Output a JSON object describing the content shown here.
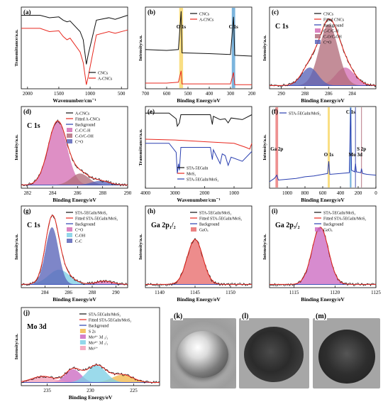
{
  "colors": {
    "black": "#111111",
    "red": "#e8281f",
    "blue": "#2a3fb0",
    "pink": "#d56fb5",
    "mauve": "#b26d7b",
    "navy": "#5a64b8",
    "yellow_band": "#f7d35a",
    "blue_band": "#4f9bd1",
    "salmon": "#e86c6c",
    "magenta": "#cc6ac2",
    "cyan": "#7fd0e6",
    "orange": "#f2b84b",
    "pink_light": "#f3a0b8"
  },
  "chart_data": [
    {
      "id": "a",
      "panel_label": "(a)",
      "type": "line",
      "xlabel": "Wavenumber/cm⁻¹",
      "ylabel": "Transmittance/a.u.",
      "xlim": [
        2100,
        400
      ],
      "xticks": [
        2000,
        1500,
        1000,
        500
      ],
      "legend": "bottom-right",
      "series": [
        {
          "name": "CNCs",
          "color": "black",
          "values": [
            [
              2100,
              0.9
            ],
            [
              1800,
              0.9
            ],
            [
              1650,
              0.87
            ],
            [
              1500,
              0.88
            ],
            [
              1430,
              0.84
            ],
            [
              1370,
              0.82
            ],
            [
              1320,
              0.83
            ],
            [
              1160,
              0.7
            ],
            [
              1110,
              0.6
            ],
            [
              1060,
              0.3
            ],
            [
              1030,
              0.42
            ],
            [
              900,
              0.84
            ],
            [
              700,
              0.87
            ],
            [
              600,
              0.85
            ],
            [
              400,
              0.9
            ]
          ]
        },
        {
          "name": "A-CNCs",
          "color": "red",
          "values": [
            [
              2100,
              0.74
            ],
            [
              1800,
              0.74
            ],
            [
              1650,
              0.7
            ],
            [
              1500,
              0.71
            ],
            [
              1430,
              0.64
            ],
            [
              1370,
              0.6
            ],
            [
              1320,
              0.62
            ],
            [
              1160,
              0.45
            ],
            [
              1110,
              0.32
            ],
            [
              1060,
              0.05
            ],
            [
              1030,
              0.15
            ],
            [
              900,
              0.66
            ],
            [
              700,
              0.7
            ],
            [
              600,
              0.68
            ],
            [
              400,
              0.72
            ]
          ]
        }
      ]
    },
    {
      "id": "b",
      "panel_label": "(b)",
      "type": "line",
      "xlabel": "Binding Energy/eV",
      "ylabel": "Intensity/a.u.",
      "xlim": [
        700,
        200
      ],
      "xticks": [
        700,
        600,
        500,
        400,
        300,
        200
      ],
      "legend": "top-right",
      "annotations": [
        "O 1s",
        "C 1s"
      ],
      "bands": [
        {
          "label": "O 1s",
          "center": 532,
          "width": 18,
          "color": "yellow_band"
        },
        {
          "label": "C 1s",
          "center": 286,
          "width": 16,
          "color": "blue_band"
        }
      ],
      "series": [
        {
          "name": "CNCs",
          "color": "black",
          "values": [
            [
              700,
              0.48
            ],
            [
              600,
              0.47
            ],
            [
              545,
              0.48
            ],
            [
              532,
              0.95
            ],
            [
              528,
              0.44
            ],
            [
              400,
              0.43
            ],
            [
              300,
              0.42
            ],
            [
              286,
              0.88
            ],
            [
              280,
              0.41
            ],
            [
              200,
              0.4
            ]
          ]
        },
        {
          "name": "A-CNCs",
          "color": "red",
          "values": [
            [
              700,
              0.07
            ],
            [
              600,
              0.07
            ],
            [
              545,
              0.08
            ],
            [
              532,
              0.22
            ],
            [
              528,
              0.06
            ],
            [
              400,
              0.06
            ],
            [
              300,
              0.06
            ],
            [
              286,
              0.2
            ],
            [
              280,
              0.05
            ],
            [
              200,
              0.05
            ]
          ]
        }
      ]
    },
    {
      "id": "c",
      "panel_label": "(c)",
      "type": "line",
      "xlabel": "Binding Energy/eV",
      "ylabel": "Intensity/a.u.",
      "xlim": [
        291,
        282
      ],
      "xticks": [
        290,
        288,
        286,
        284
      ],
      "legend": "top-right",
      "annotations": [
        "C 1s"
      ],
      "peaks": [
        {
          "name": "C-C/C-H",
          "center": 284.6,
          "height": 0.22,
          "sigma": 0.8,
          "color": "pink"
        },
        {
          "name": "C-O/C-OH",
          "center": 286.0,
          "height": 0.75,
          "sigma": 0.8,
          "color": "mauve"
        },
        {
          "name": "C=O",
          "center": 287.6,
          "height": 0.22,
          "sigma": 0.7,
          "color": "navy"
        }
      ],
      "series": [
        {
          "name": "CNCs",
          "color": "black",
          "values": []
        },
        {
          "name": "Fitted CNCs",
          "color": "red",
          "values": []
        },
        {
          "name": "Background",
          "color": "blue",
          "values": []
        }
      ]
    },
    {
      "id": "d",
      "panel_label": "(d)",
      "type": "line",
      "xlabel": "Binding Energy/eV",
      "ylabel": "Intensity/a.u.",
      "xlim": [
        281.5,
        290
      ],
      "xticks": [
        282,
        284,
        286,
        288,
        290
      ],
      "legend": "top-right",
      "annotations": [
        "C 1s"
      ],
      "peaks": [
        {
          "name": "C-C/C-H",
          "center": 284.4,
          "height": 0.78,
          "sigma": 0.75,
          "color": "pink"
        },
        {
          "name": "C-O/C-OH",
          "center": 286.2,
          "height": 0.14,
          "sigma": 0.7,
          "color": "mauve"
        },
        {
          "name": "C=O",
          "center": 287.8,
          "height": 0.05,
          "sigma": 0.7,
          "color": "navy"
        }
      ],
      "series": [
        {
          "name": "A-CNCs",
          "color": "black",
          "values": []
        },
        {
          "name": "Fitted A-CNCs",
          "color": "red",
          "values": []
        },
        {
          "name": "Background",
          "color": "blue",
          "values": []
        }
      ]
    },
    {
      "id": "e",
      "panel_label": "(e)",
      "type": "line",
      "xlabel": "Wavenumber/cm⁻¹",
      "ylabel": "Transmittance/a.u.",
      "xlim": [
        4000,
        400
      ],
      "xticks": [
        4000,
        3000,
        2000,
        1000
      ],
      "legend": "bottom-center",
      "series": [
        {
          "name": "STA-5EGaIn",
          "color": "black",
          "values": [
            [
              4000,
              0.92
            ],
            [
              3200,
              0.92
            ],
            [
              2960,
              0.85
            ],
            [
              2920,
              0.76
            ],
            [
              2850,
              0.8
            ],
            [
              2800,
              0.9
            ],
            [
              1800,
              0.9
            ],
            [
              1735,
              0.78
            ],
            [
              1700,
              0.88
            ],
            [
              1470,
              0.84
            ],
            [
              1300,
              0.85
            ],
            [
              1200,
              0.8
            ],
            [
              1100,
              0.86
            ],
            [
              720,
              0.84
            ],
            [
              400,
              0.9
            ]
          ]
        },
        {
          "name": "MoS₂",
          "color": "red",
          "values": [
            [
              4000,
              0.6
            ],
            [
              3000,
              0.59
            ],
            [
              2000,
              0.57
            ],
            [
              1500,
              0.56
            ],
            [
              1000,
              0.55
            ],
            [
              600,
              0.5
            ],
            [
              470,
              0.48
            ],
            [
              400,
              0.55
            ]
          ]
        },
        {
          "name": "STA-5EGaIn/MoS₂",
          "color": "blue",
          "values": [
            [
              4000,
              0.55
            ],
            [
              3200,
              0.55
            ],
            [
              2960,
              0.44
            ],
            [
              2920,
              0.18
            ],
            [
              2880,
              0.3
            ],
            [
              2850,
              0.22
            ],
            [
              2800,
              0.5
            ],
            [
              1800,
              0.5
            ],
            [
              1735,
              0.35
            ],
            [
              1700,
              0.47
            ],
            [
              1470,
              0.3
            ],
            [
              1400,
              0.42
            ],
            [
              1300,
              0.4
            ],
            [
              1200,
              0.28
            ],
            [
              1100,
              0.38
            ],
            [
              720,
              0.33
            ],
            [
              400,
              0.45
            ]
          ]
        }
      ]
    },
    {
      "id": "f",
      "panel_label": "(f)",
      "type": "line",
      "xlabel": "Binding Energy/eV",
      "ylabel": "Intensity/a.u.",
      "xlim": [
        1200,
        0
      ],
      "xticks": [
        1000,
        800,
        600,
        400,
        200,
        0
      ],
      "legend": "top-right",
      "annotations": [
        "C 1s",
        "O 1s",
        "Ga 2p",
        "Mo 3d",
        "S 2p"
      ],
      "bands": [
        {
          "label": "Ga 2p",
          "center": 1118,
          "width": 30,
          "color": "salmon"
        },
        {
          "label": "O 1s",
          "center": 532,
          "width": 24,
          "color": "yellow_band"
        },
        {
          "label": "C 1s",
          "center": 285,
          "width": 18,
          "color": "blue_band"
        },
        {
          "label": "Mo 3d",
          "center": 230,
          "width": 12,
          "color": "navy"
        },
        {
          "label": "S 2p",
          "center": 163,
          "width": 10,
          "color": "mauve"
        }
      ],
      "series": [
        {
          "name": "STA-5EGaIn/MoS₂",
          "color": "blue",
          "values": [
            [
              1200,
              0.08
            ],
            [
              1145,
              0.12
            ],
            [
              1118,
              0.16
            ],
            [
              1100,
              0.1
            ],
            [
              1000,
              0.11
            ],
            [
              900,
              0.12
            ],
            [
              800,
              0.14
            ],
            [
              700,
              0.15
            ],
            [
              600,
              0.17
            ],
            [
              545,
              0.18
            ],
            [
              532,
              0.33
            ],
            [
              520,
              0.17
            ],
            [
              400,
              0.18
            ],
            [
              300,
              0.19
            ],
            [
              285,
              0.98
            ],
            [
              275,
              0.22
            ],
            [
              240,
              0.2
            ],
            [
              230,
              0.3
            ],
            [
              220,
              0.2
            ],
            [
              170,
              0.19
            ],
            [
              163,
              0.24
            ],
            [
              150,
              0.18
            ],
            [
              100,
              0.17
            ],
            [
              0,
              0.16
            ]
          ]
        }
      ]
    },
    {
      "id": "g",
      "panel_label": "(g)",
      "type": "line",
      "xlabel": "Binding Energy/eV",
      "ylabel": "Intensity/a.u.",
      "xlim": [
        282,
        291
      ],
      "xticks": [
        284,
        286,
        288,
        290
      ],
      "legend": "top-right",
      "annotations": [
        "C 1s"
      ],
      "peaks": [
        {
          "name": "C=O",
          "center": 289.0,
          "height": 0.04,
          "sigma": 0.7,
          "color": "pink"
        },
        {
          "name": "C-OH",
          "center": 285.2,
          "height": 0.18,
          "sigma": 0.9,
          "color": "cyan"
        },
        {
          "name": "C-C",
          "center": 284.6,
          "height": 0.7,
          "sigma": 0.55,
          "color": "navy"
        }
      ],
      "series": [
        {
          "name": "STA-5EGaIn/MoS₂",
          "color": "black",
          "values": []
        },
        {
          "name": "Fitted STA-5EGaIn/MoS₂",
          "color": "red",
          "values": []
        },
        {
          "name": "Background",
          "color": "blue",
          "values": []
        }
      ]
    },
    {
      "id": "h",
      "panel_label": "(h)",
      "type": "line",
      "xlabel": "Binding Energy/eV",
      "ylabel": "Intensity/a.u.",
      "xlim": [
        1138,
        1153
      ],
      "xticks": [
        1140,
        1145,
        1150
      ],
      "legend": "top-right",
      "annotations": [
        "Ga 2p₁/₂"
      ],
      "peaks": [
        {
          "name": "GaOₓ",
          "center": 1145.0,
          "height": 0.55,
          "sigma": 1.1,
          "color": "salmon"
        }
      ],
      "series": [
        {
          "name": "STA-5EGaIn/MoS₂",
          "color": "black",
          "values": []
        },
        {
          "name": "Fitted STA-5EGaIn/MoS₂",
          "color": "red",
          "values": []
        },
        {
          "name": "Background",
          "color": "blue",
          "values": []
        }
      ]
    },
    {
      "id": "i",
      "panel_label": "(i)",
      "type": "line",
      "xlabel": "Binding Energy/eV",
      "ylabel": "Intensity/a.u.",
      "xlim": [
        1112,
        1125
      ],
      "xticks": [
        1115,
        1120,
        1125
      ],
      "legend": "top-right",
      "annotations": [
        "Ga 2p₃/₂"
      ],
      "peaks": [
        {
          "name": "GaOₓ",
          "center": 1118.2,
          "height": 0.7,
          "sigma": 1.0,
          "color": "magenta"
        }
      ],
      "series": [
        {
          "name": "STA-5EGaIn/MoS₂",
          "color": "black",
          "values": []
        },
        {
          "name": "Fitted STA-5EGaIn/MoS₂",
          "color": "red",
          "values": []
        },
        {
          "name": "Background",
          "color": "blue",
          "values": []
        }
      ]
    },
    {
      "id": "j",
      "panel_label": "(j)",
      "type": "line",
      "xlabel": "Binding Energy/eV",
      "ylabel": "Intensity/a.u.",
      "xlim": [
        238,
        222
      ],
      "xticks": [
        235,
        230,
        225
      ],
      "legend": "top-right",
      "annotations": [
        "Mo 3d"
      ],
      "peaks": [
        {
          "name": "S 2s",
          "center": 226.3,
          "height": 0.1,
          "sigma": 1.2,
          "color": "orange"
        },
        {
          "name": "Mo⁴⁺ 3d ₃/₂",
          "center": 232.0,
          "height": 0.17,
          "sigma": 0.9,
          "color": "magenta"
        },
        {
          "name": "Mo⁴⁺ 3d ₅/₂",
          "center": 229.3,
          "height": 0.22,
          "sigma": 1.1,
          "color": "cyan"
        },
        {
          "name": "Mo⁶⁺",
          "center": 235.5,
          "height": 0.08,
          "sigma": 1.3,
          "color": "pink_light"
        }
      ],
      "series": [
        {
          "name": "STA-5EGaIn/MoS₂",
          "color": "black",
          "values": []
        },
        {
          "name": "Fitted STA-5EGaIn/MoS₂",
          "color": "red",
          "values": []
        },
        {
          "name": "Background",
          "color": "blue",
          "values": []
        }
      ]
    }
  ],
  "photos": [
    {
      "id": "k",
      "label": "(k)"
    },
    {
      "id": "l",
      "label": "(l)"
    },
    {
      "id": "m",
      "label": "(m)"
    }
  ]
}
